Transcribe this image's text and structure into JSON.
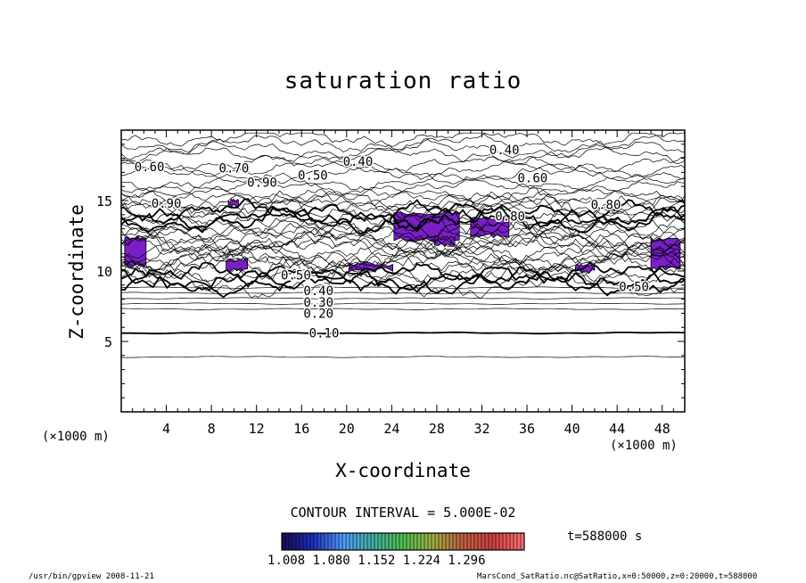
{
  "chart_data": {
    "type": "contour",
    "title": "saturation ratio",
    "xlabel": "X-coordinate",
    "ylabel": "Z-coordinate",
    "x_unit_left": "(×1000 m)",
    "x_unit_right": "(×1000 m)",
    "xlim": [
      0,
      50
    ],
    "ylim": [
      0,
      20
    ],
    "x_ticks": [
      4,
      8,
      12,
      16,
      20,
      24,
      28,
      32,
      36,
      40,
      44,
      48
    ],
    "y_ticks": [
      5,
      10,
      15
    ],
    "contour_interval_text": "CONTOUR INTERVAL = 5.000E-02",
    "time_text": "t=588000 s",
    "colorbar_ticks": [
      "1.008",
      "1.080",
      "1.152",
      "1.224",
      "1.296"
    ],
    "labeled_contours": [
      {
        "label": "0.10",
        "x": 18,
        "z": 5.6
      },
      {
        "label": "0.20",
        "x": 17.5,
        "z": 7.0
      },
      {
        "label": "0.30",
        "x": 17.5,
        "z": 7.8
      },
      {
        "label": "0.40",
        "x": 17.5,
        "z": 8.6
      },
      {
        "label": "0.50",
        "x": 15.5,
        "z": 9.7
      },
      {
        "label": "0.60",
        "x": 2.5,
        "z": 17.4
      },
      {
        "label": "0.70",
        "x": 10,
        "z": 17.3
      },
      {
        "label": "0.50",
        "x": 17,
        "z": 16.8
      },
      {
        "label": "0.40",
        "x": 21,
        "z": 17.8
      },
      {
        "label": "0.40",
        "x": 34,
        "z": 18.6
      },
      {
        "label": "0.60",
        "x": 36.5,
        "z": 16.6
      },
      {
        "label": "0.80",
        "x": 34.5,
        "z": 13.9
      },
      {
        "label": "0.80",
        "x": 43,
        "z": 14.7
      },
      {
        "label": "0.90",
        "x": 4,
        "z": 14.8
      },
      {
        "label": "0.90",
        "x": 12.5,
        "z": 16.3
      },
      {
        "label": "0.50",
        "x": 45.5,
        "z": 8.9
      }
    ],
    "supersaturated_regions": [
      {
        "x": [
          0.3,
          2.2
        ],
        "z": [
          10.4,
          12.4
        ]
      },
      {
        "x": [
          9.3,
          11.2
        ],
        "z": [
          10.1,
          10.8
        ]
      },
      {
        "x": [
          9.5,
          10.4
        ],
        "z": [
          14.6,
          15.0
        ]
      },
      {
        "x": [
          24.2,
          30
        ],
        "z": [
          12.2,
          14.1
        ]
      },
      {
        "x": [
          31,
          34.4
        ],
        "z": [
          12.5,
          13.8
        ]
      },
      {
        "x": [
          20.2,
          24.1
        ],
        "z": [
          10.1,
          10.5
        ]
      },
      {
        "x": [
          40.3,
          42
        ],
        "z": [
          10.0,
          10.4
        ]
      },
      {
        "x": [
          47,
          49.6
        ],
        "z": [
          10.2,
          12.2
        ]
      },
      {
        "x": [
          27.8,
          29.6
        ],
        "z": [
          11.8,
          12.4
        ]
      }
    ],
    "colorbar_colors": [
      "#1a0a5a",
      "#2030c0",
      "#50a0ff",
      "#40b0a0",
      "#50c050",
      "#a0b040",
      "#c06040",
      "#d04040",
      "#ff7070"
    ]
  },
  "footer": {
    "left": "/usr/bin/gpview   2008-11-21",
    "right": "MarsCond_SatRatio.nc@SatRatio,x=0:50000,z=0:20000,t=588000"
  }
}
